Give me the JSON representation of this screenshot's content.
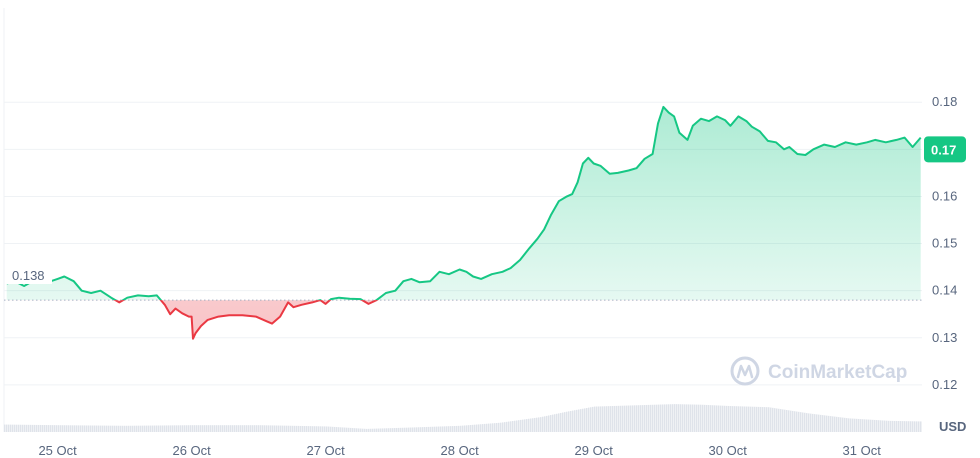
{
  "chart_data": {
    "type": "area",
    "unit": "USD",
    "baseline": 0.138,
    "baseline_label": "0.138",
    "current_value": 0.17,
    "current_label": "0.17",
    "ylim": [
      0.11,
      0.2
    ],
    "y_ticks": [
      {
        "value": 0.18,
        "label": "0.18"
      },
      {
        "value": 0.17,
        "label": "0.17"
      },
      {
        "value": 0.16,
        "label": "0.16"
      },
      {
        "value": 0.15,
        "label": "0.15"
      },
      {
        "value": 0.14,
        "label": "0.14"
      },
      {
        "value": 0.13,
        "label": "0.13"
      },
      {
        "value": 0.12,
        "label": "0.12"
      }
    ],
    "x_range_days": [
      24.6,
      31.45
    ],
    "x_ticks": [
      {
        "day": 25,
        "label": "25 Oct"
      },
      {
        "day": 26,
        "label": "26 Oct"
      },
      {
        "day": 27,
        "label": "27 Oct"
      },
      {
        "day": 28,
        "label": "28 Oct"
      },
      {
        "day": 29,
        "label": "29 Oct"
      },
      {
        "day": 30,
        "label": "30 Oct"
      },
      {
        "day": 31,
        "label": "31 Oct"
      }
    ],
    "series": [
      {
        "points": [
          [
            24.62,
            0.1415
          ],
          [
            24.68,
            0.142
          ],
          [
            24.75,
            0.141
          ],
          [
            24.8,
            0.1418
          ],
          [
            24.88,
            0.1425
          ],
          [
            24.95,
            0.142
          ],
          [
            25.0,
            0.1425
          ],
          [
            25.05,
            0.143
          ],
          [
            25.12,
            0.142
          ],
          [
            25.18,
            0.14
          ],
          [
            25.25,
            0.1395
          ],
          [
            25.32,
            0.14
          ],
          [
            25.4,
            0.1385
          ],
          [
            25.46,
            0.1375
          ],
          [
            25.52,
            0.1385
          ],
          [
            25.6,
            0.139
          ],
          [
            25.68,
            0.1388
          ],
          [
            25.74,
            0.139
          ],
          [
            25.8,
            0.137
          ],
          [
            25.84,
            0.135
          ],
          [
            25.88,
            0.1362
          ],
          [
            25.93,
            0.1352
          ],
          [
            25.98,
            0.1345
          ],
          [
            26.0,
            0.1345
          ],
          [
            26.01,
            0.1298
          ],
          [
            26.03,
            0.131
          ],
          [
            26.07,
            0.1325
          ],
          [
            26.12,
            0.1338
          ],
          [
            26.2,
            0.1345
          ],
          [
            26.28,
            0.1348
          ],
          [
            26.38,
            0.1348
          ],
          [
            26.48,
            0.1345
          ],
          [
            26.56,
            0.1335
          ],
          [
            26.6,
            0.133
          ],
          [
            26.66,
            0.1345
          ],
          [
            26.72,
            0.1375
          ],
          [
            26.76,
            0.1365
          ],
          [
            26.82,
            0.137
          ],
          [
            26.9,
            0.1375
          ],
          [
            26.96,
            0.138
          ],
          [
            27.0,
            0.1372
          ],
          [
            27.04,
            0.1382
          ],
          [
            27.1,
            0.1385
          ],
          [
            27.18,
            0.1383
          ],
          [
            27.26,
            0.1382
          ],
          [
            27.32,
            0.1372
          ],
          [
            27.38,
            0.138
          ],
          [
            27.45,
            0.1395
          ],
          [
            27.52,
            0.14
          ],
          [
            27.58,
            0.142
          ],
          [
            27.64,
            0.1425
          ],
          [
            27.7,
            0.1418
          ],
          [
            27.78,
            0.142
          ],
          [
            27.85,
            0.144
          ],
          [
            27.92,
            0.1435
          ],
          [
            28.0,
            0.1445
          ],
          [
            28.05,
            0.144
          ],
          [
            28.1,
            0.143
          ],
          [
            28.16,
            0.1425
          ],
          [
            28.24,
            0.1435
          ],
          [
            28.32,
            0.144
          ],
          [
            28.38,
            0.1448
          ],
          [
            28.45,
            0.1465
          ],
          [
            28.52,
            0.149
          ],
          [
            28.58,
            0.151
          ],
          [
            28.63,
            0.153
          ],
          [
            28.68,
            0.156
          ],
          [
            28.74,
            0.159
          ],
          [
            28.8,
            0.16
          ],
          [
            28.84,
            0.1605
          ],
          [
            28.88,
            0.163
          ],
          [
            28.92,
            0.167
          ],
          [
            28.96,
            0.1682
          ],
          [
            29.0,
            0.167
          ],
          [
            29.05,
            0.1665
          ],
          [
            29.12,
            0.1648
          ],
          [
            29.18,
            0.165
          ],
          [
            29.26,
            0.1655
          ],
          [
            29.32,
            0.166
          ],
          [
            29.38,
            0.168
          ],
          [
            29.44,
            0.169
          ],
          [
            29.48,
            0.1755
          ],
          [
            29.52,
            0.179
          ],
          [
            29.56,
            0.1778
          ],
          [
            29.6,
            0.177
          ],
          [
            29.64,
            0.1735
          ],
          [
            29.7,
            0.172
          ],
          [
            29.74,
            0.175
          ],
          [
            29.8,
            0.1765
          ],
          [
            29.86,
            0.176
          ],
          [
            29.92,
            0.177
          ],
          [
            29.98,
            0.1762
          ],
          [
            30.02,
            0.175
          ],
          [
            30.08,
            0.177
          ],
          [
            30.14,
            0.176
          ],
          [
            30.18,
            0.1748
          ],
          [
            30.24,
            0.1738
          ],
          [
            30.3,
            0.1718
          ],
          [
            30.36,
            0.1715
          ],
          [
            30.42,
            0.17
          ],
          [
            30.46,
            0.1705
          ],
          [
            30.52,
            0.169
          ],
          [
            30.58,
            0.1688
          ],
          [
            30.64,
            0.17
          ],
          [
            30.72,
            0.171
          ],
          [
            30.8,
            0.1705
          ],
          [
            30.88,
            0.1715
          ],
          [
            30.96,
            0.171
          ],
          [
            31.04,
            0.1715
          ],
          [
            31.1,
            0.172
          ],
          [
            31.18,
            0.1715
          ],
          [
            31.26,
            0.172
          ],
          [
            31.32,
            0.1725
          ],
          [
            31.38,
            0.1705
          ],
          [
            31.44,
            0.1725
          ]
        ]
      }
    ],
    "volume": [
      [
        24.6,
        0.12
      ],
      [
        25.0,
        0.11
      ],
      [
        25.5,
        0.1
      ],
      [
        26.0,
        0.11
      ],
      [
        26.5,
        0.11
      ],
      [
        27.0,
        0.09
      ],
      [
        27.3,
        0.05
      ],
      [
        27.6,
        0.07
      ],
      [
        28.0,
        0.1
      ],
      [
        28.3,
        0.15
      ],
      [
        28.6,
        0.24
      ],
      [
        28.8,
        0.33
      ],
      [
        29.0,
        0.41
      ],
      [
        29.3,
        0.43
      ],
      [
        29.6,
        0.45
      ],
      [
        29.8,
        0.44
      ],
      [
        30.0,
        0.42
      ],
      [
        30.3,
        0.4
      ],
      [
        30.6,
        0.3
      ],
      [
        30.9,
        0.22
      ],
      [
        31.2,
        0.18
      ],
      [
        31.45,
        0.17
      ]
    ],
    "grid": true,
    "watermark": "CoinMarketCap"
  }
}
